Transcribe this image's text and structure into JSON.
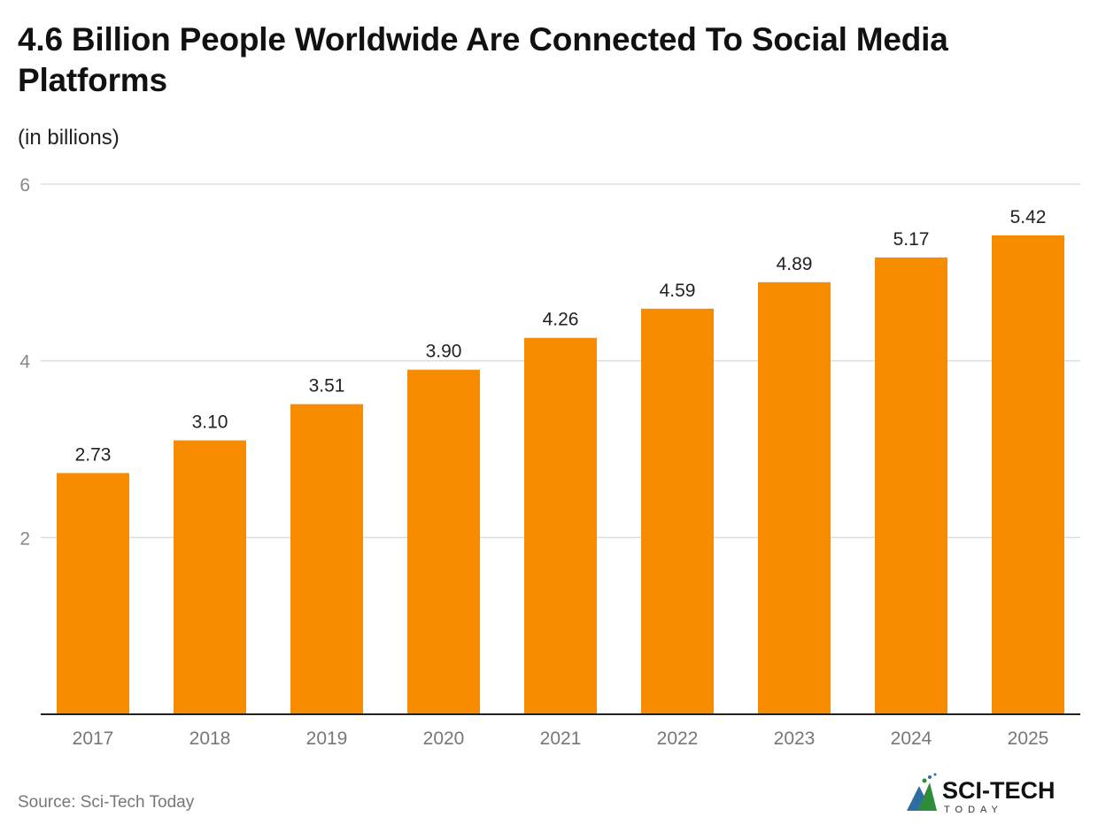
{
  "title": "4.6 Billion People Worldwide Are Connected To Social Media Platforms",
  "subtitle": "(in billions)",
  "source": "Source: Sci-Tech Today",
  "logo_text": "SCI-TECH TODAY",
  "colors": {
    "bar": "#F78C00",
    "grid": "#DDDDDD",
    "axis": "#222222"
  },
  "chart_data": {
    "type": "bar",
    "title": "4.6 Billion People Worldwide Are Connected To Social Media Platforms",
    "ylabel": "(in billions)",
    "xlabel": "",
    "categories": [
      "2017",
      "2018",
      "2019",
      "2020",
      "2021",
      "2022",
      "2023",
      "2024",
      "2025"
    ],
    "values": [
      2.73,
      3.1,
      3.51,
      3.9,
      4.26,
      4.59,
      4.89,
      5.17,
      5.42
    ],
    "data_labels": [
      "2.73",
      "3.10",
      "3.51",
      "3.90",
      "4.26",
      "4.59",
      "4.89",
      "5.17",
      "5.42"
    ],
    "ylim": [
      0,
      6
    ],
    "yticks": [
      "2",
      "4",
      "6"
    ],
    "grid": true
  }
}
